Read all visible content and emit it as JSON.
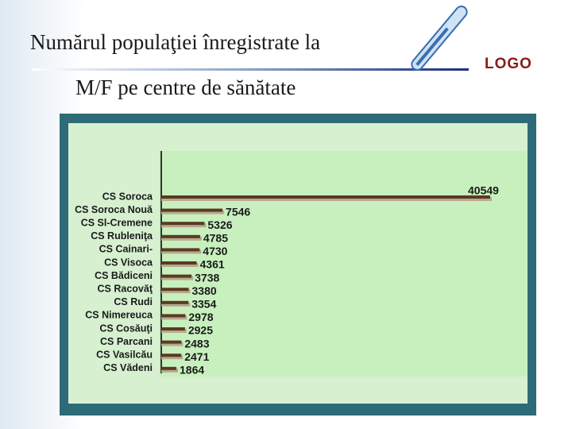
{
  "title_lines": [
    "Numărul populaţiei înregistrate la",
    "M/F pe centre de sănătate"
  ],
  "logo": "LOGO",
  "chart_data": {
    "type": "bar",
    "orientation": "horizontal",
    "color": "#5a3a22",
    "categories": [
      "CS Soroca",
      "CS Soroca Nouă",
      "CS Sl-Cremene",
      "CS Rubleniţa",
      "CS Cainari-",
      "CS Visoca",
      "CS Bădiceni",
      "CS Racovăţ",
      "CS Rudi",
      "CS Nimereuca",
      "CS Cosăuţi",
      "CS Parcani",
      "CS Vasilcău",
      "CS Vădeni"
    ],
    "values": [
      40549,
      7546,
      5326,
      4785,
      4730,
      4361,
      3738,
      3380,
      3354,
      2978,
      2925,
      2483,
      2471,
      1864
    ]
  }
}
